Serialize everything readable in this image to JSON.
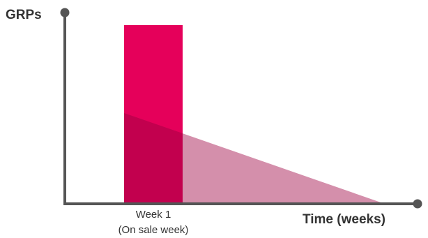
{
  "axes": {
    "y_label": "GRPs",
    "x_label": "Time (weeks)"
  },
  "week_marker": {
    "line1": "Week 1",
    "line2": "(On sale week)"
  },
  "colors": {
    "axis": "#555555",
    "bar": "#E5005A",
    "decay": "#D48FAB",
    "overlap": "#C2004E",
    "text": "#333333"
  }
}
